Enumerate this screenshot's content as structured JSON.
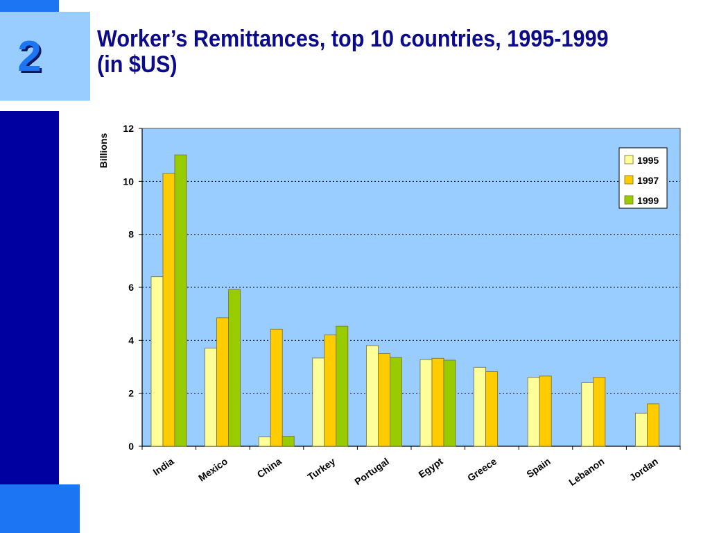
{
  "slide": {
    "number": "2",
    "title_line1": "Worker’s Remittances, top 10 countries, 1995-1999",
    "title_line2": "(in $US)"
  },
  "colors": {
    "sidebar_dark": "#0000a0",
    "accent_blue": "#1c75f2",
    "light_box": "#99ccff",
    "title_color": "#0a0a8a",
    "plot_bg": "#99ccff"
  },
  "chart_data": {
    "type": "bar",
    "ylabel": "Billions",
    "xlabel": "",
    "ylim": [
      0,
      12
    ],
    "yticks": [
      0,
      2,
      4,
      6,
      8,
      10,
      12
    ],
    "grid": true,
    "legend_position": "top-right",
    "categories": [
      "India",
      "Mexico",
      "China",
      "Turkey",
      "Portugal",
      "Egypt",
      "Greece",
      "Spain",
      "Lebanon",
      "Jordan"
    ],
    "series": [
      {
        "name": "1995",
        "color": "#ffff99",
        "values": [
          6.4,
          3.7,
          0.35,
          3.33,
          3.8,
          3.27,
          2.98,
          2.6,
          2.4,
          1.25
        ]
      },
      {
        "name": "1997",
        "color": "#ffcc00",
        "values": [
          10.3,
          4.85,
          4.42,
          4.2,
          3.5,
          3.32,
          2.82,
          2.65,
          2.6,
          1.6
        ]
      },
      {
        "name": "1999",
        "color": "#99cc00",
        "values": [
          11.0,
          5.92,
          0.38,
          4.53,
          3.35,
          3.25,
          null,
          null,
          null,
          null
        ]
      }
    ]
  }
}
